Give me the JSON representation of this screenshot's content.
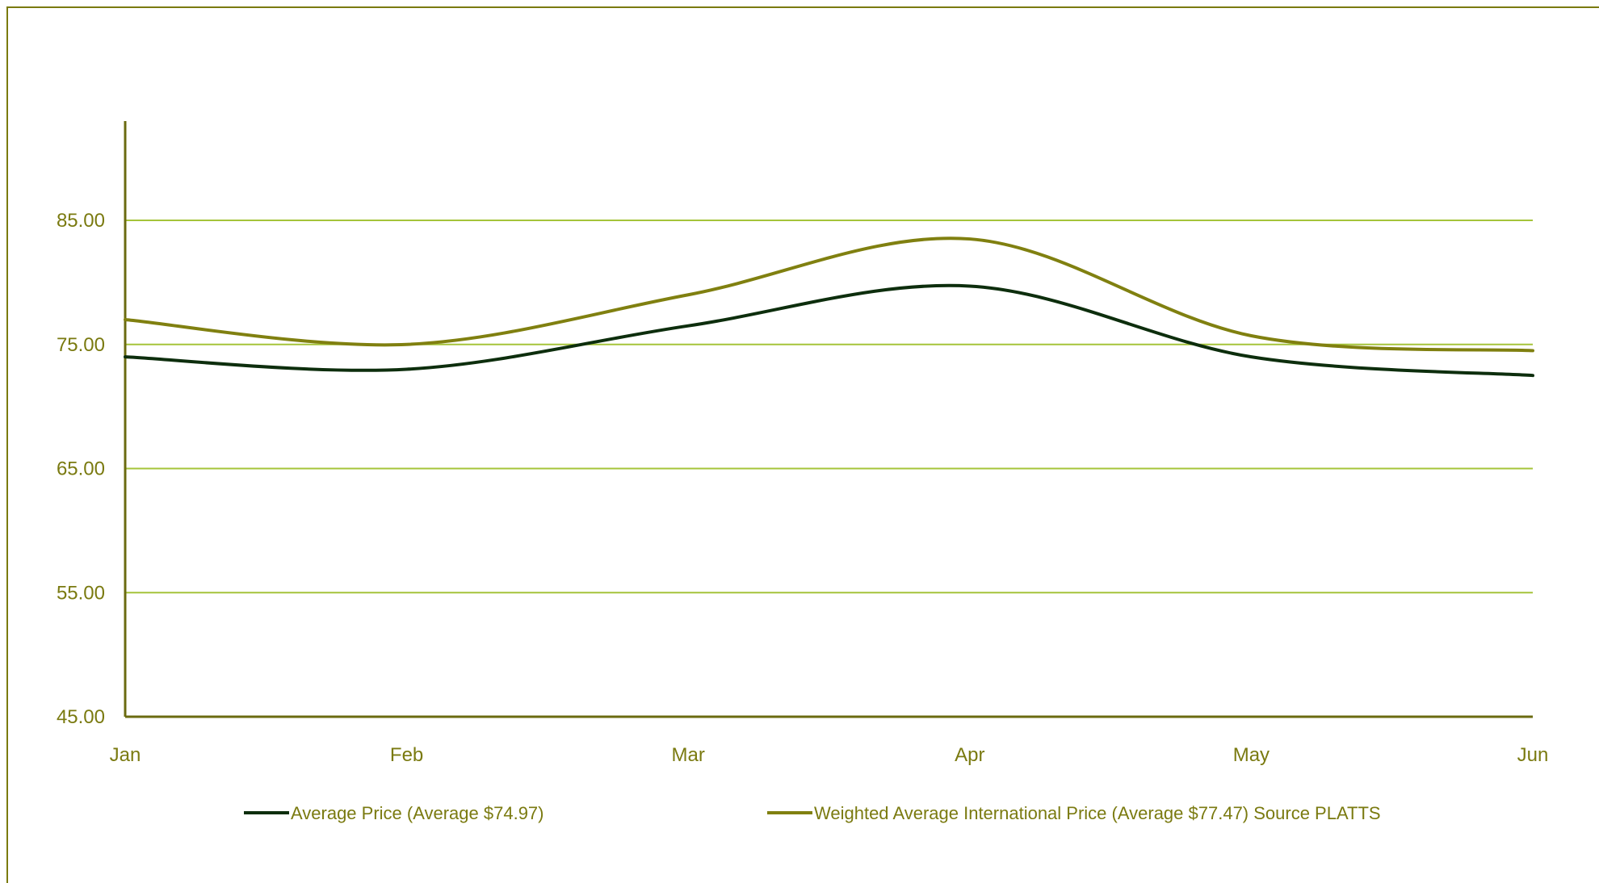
{
  "chart_data": {
    "type": "line",
    "title": "",
    "xlabel": "",
    "ylabel": "",
    "categories": [
      "Jan",
      "Feb",
      "Mar",
      "Apr",
      "May",
      "Jun"
    ],
    "yticks": [
      "45.00",
      "55.00",
      "65.00",
      "75.00",
      "85.00"
    ],
    "ylim": [
      45,
      93
    ],
    "grid": true,
    "legend_position": "bottom",
    "series": [
      {
        "name": "Average Price (Average $74.97)",
        "values": [
          74.0,
          73.0,
          76.5,
          79.7,
          74.0,
          72.5
        ],
        "color": "#0d2e0d"
      },
      {
        "name": "Weighted Average International  Price (Average $77.47) Source PLATTS",
        "values": [
          77.0,
          75.0,
          79.0,
          83.5,
          75.7,
          74.5
        ],
        "color": "#808010"
      }
    ],
    "colors": {
      "text": "#7a7a10",
      "axis": "#6b6b10",
      "grid": "#a5c43a"
    }
  }
}
